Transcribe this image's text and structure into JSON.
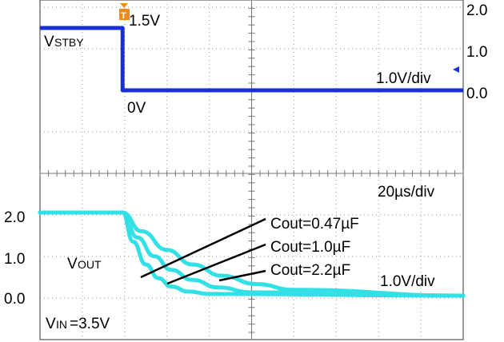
{
  "chart_data": {
    "type": "line",
    "title": "",
    "time_div": "20µs/div",
    "top_panel": {
      "trace_label_main": "V",
      "trace_label_sub": "STBY",
      "level_high_label": "1.5V",
      "level_low_label": "0V",
      "scale_label": "1.0V/div",
      "right_ticks": [
        "2.0",
        "1.0",
        "0.0"
      ],
      "trigger_marker": "T",
      "series": [
        {
          "name": "VSTBY",
          "color": "#1a2fd6",
          "x": [
            0,
            1.95,
            1.95,
            10
          ],
          "y": [
            1.5,
            1.5,
            0.0,
            0.0
          ]
        }
      ]
    },
    "bottom_panel": {
      "trace_label_main": "V",
      "trace_label_sub": "OUT",
      "vin_label_main": "V",
      "vin_label_sub": "IN",
      "vin_label_value": "=3.5V",
      "scale_label": "1.0V/div",
      "left_ticks": [
        "2.0",
        "1.0",
        "0.0"
      ],
      "annotations": [
        "Cout=0.47µF",
        "Cout=1.0µF",
        "Cout=2.2µF"
      ],
      "series": [
        {
          "name": "Cout=0.47µF",
          "color": "#33e0e6",
          "x": [
            0,
            1.95,
            2.2,
            2.5,
            2.8,
            3.1,
            3.5,
            4.0,
            10
          ],
          "y": [
            2.0,
            2.0,
            1.3,
            0.75,
            0.42,
            0.22,
            0.1,
            0.04,
            0.0
          ]
        },
        {
          "name": "Cout=1.0µF",
          "color": "#33e0e6",
          "x": [
            0,
            1.95,
            2.3,
            2.7,
            3.1,
            3.6,
            4.2,
            5.0,
            10
          ],
          "y": [
            2.0,
            2.0,
            1.4,
            0.95,
            0.62,
            0.38,
            0.2,
            0.08,
            0.0
          ]
        },
        {
          "name": "Cout=2.2µF",
          "color": "#33e0e6",
          "x": [
            0,
            1.95,
            2.4,
            3.0,
            3.6,
            4.3,
            5.1,
            6.0,
            10
          ],
          "y": [
            2.0,
            2.0,
            1.55,
            1.1,
            0.75,
            0.48,
            0.28,
            0.14,
            0.0
          ]
        }
      ]
    },
    "grid": true
  }
}
